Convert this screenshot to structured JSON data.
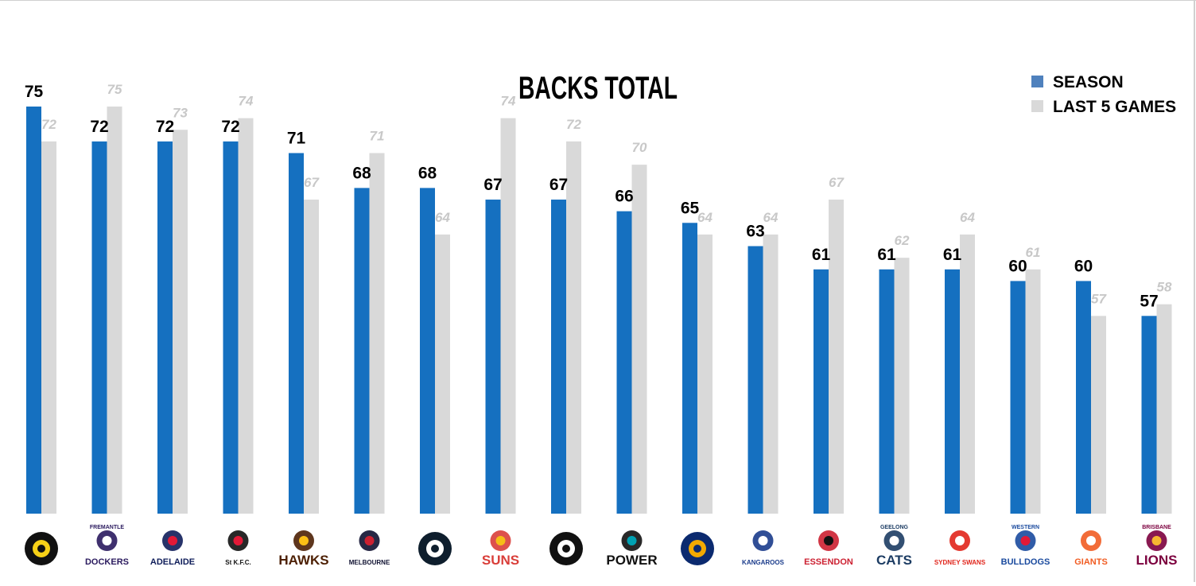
{
  "chart_data": {
    "type": "bar",
    "title": "BACKS TOTAL",
    "legend": {
      "position": "top-right"
    },
    "ylim": [
      40,
      77
    ],
    "grid": false,
    "categories": [
      "Richmond",
      "Fremantle",
      "Adelaide",
      "St Kilda",
      "Hawthorn",
      "Melbourne",
      "Carlton",
      "Gold Coast",
      "Collingwood",
      "Port Adelaide",
      "West Coast",
      "North Melbourne",
      "Essendon",
      "Geelong",
      "Sydney",
      "Western Bulldogs",
      "GWS",
      "Brisbane"
    ],
    "series": [
      {
        "name": "SEASON",
        "color": "#1570c0",
        "values": [
          75,
          72,
          72,
          72,
          71,
          68,
          68,
          67,
          67,
          66,
          65,
          63,
          61,
          61,
          61,
          60,
          60,
          57
        ],
        "value_labels": [
          "75",
          "72",
          "72",
          "72",
          "71",
          "68",
          "68",
          "67",
          "67",
          "66",
          "65",
          "63",
          "61",
          "61",
          "61",
          "60",
          "60",
          "57"
        ]
      },
      {
        "name": "LAST 5 GAMES",
        "color": "#d9d9d9",
        "values": [
          72,
          75,
          73,
          74,
          67,
          71,
          64,
          74,
          72,
          70,
          64,
          64,
          67,
          62,
          64,
          61,
          57,
          58
        ],
        "value_labels": [
          "72",
          "75",
          "73",
          "74",
          "67",
          "71",
          "64",
          "74",
          "72",
          "70",
          "64",
          "64",
          "67",
          "62",
          "64",
          "61",
          "57",
          "58"
        ]
      }
    ]
  },
  "logos": [
    {
      "icon": "tiger-icon",
      "text": "",
      "color": "#111111",
      "accent": "#f7d117"
    },
    {
      "icon": "anchor-icon",
      "text": "DOCKERS",
      "small": "FREMANTLE",
      "color": "#2a1a5e",
      "accent": "#ffffff"
    },
    {
      "icon": "crow-icon",
      "text": "ADELAIDE",
      "color": "#0f1d5a",
      "accent": "#e21937"
    },
    {
      "icon": "cross-shield-icon",
      "text": "St K.F.C.",
      "color": "#111111",
      "accent": "#e21937"
    },
    {
      "icon": "hawk-icon",
      "text": "HAWKS",
      "color": "#4d2004",
      "accent": "#fbbf15"
    },
    {
      "icon": "melbourne-shield-icon",
      "text": "MELBOURNE",
      "color": "#0f1131",
      "accent": "#cc2031"
    },
    {
      "icon": "carlton-monogram-icon",
      "text": "",
      "color": "#0e1e2d",
      "accent": "#ffffff"
    },
    {
      "icon": "sun-icon",
      "text": "SUNS",
      "color": "#d93e39",
      "accent": "#f6bd17"
    },
    {
      "icon": "magpie-icon",
      "text": "",
      "color": "#111111",
      "accent": "#ffffff"
    },
    {
      "icon": "power-icon",
      "text": "POWER",
      "color": "#111111",
      "accent": "#00a1b2"
    },
    {
      "icon": "eagle-icon",
      "text": "",
      "color": "#0b2a6f",
      "accent": "#f2a900"
    },
    {
      "icon": "kangaroo-icon",
      "text": "KANGAROOS",
      "color": "#1a3b8b",
      "accent": "#ffffff"
    },
    {
      "icon": "bomber-icon",
      "text": "ESSENDON",
      "color": "#cc2031",
      "accent": "#111111"
    },
    {
      "icon": "cat-icon",
      "text": "CATS",
      "small": "GEELONG",
      "color": "#1c3c63",
      "accent": "#ffffff"
    },
    {
      "icon": "swan-icon",
      "text": "SYDNEY SWANS",
      "color": "#e1251b",
      "accent": "#ffffff"
    },
    {
      "icon": "bulldog-icon",
      "text": "BULLDOGS",
      "small": "WESTERN",
      "color": "#1a4a9e",
      "accent": "#e21937"
    },
    {
      "icon": "giants-icon",
      "text": "GIANTS",
      "color": "#f15c22",
      "accent": "#ffffff"
    },
    {
      "icon": "lion-icon",
      "text": "LIONS",
      "small": "BRISBANE",
      "color": "#7c003e",
      "accent": "#f7b731"
    }
  ]
}
